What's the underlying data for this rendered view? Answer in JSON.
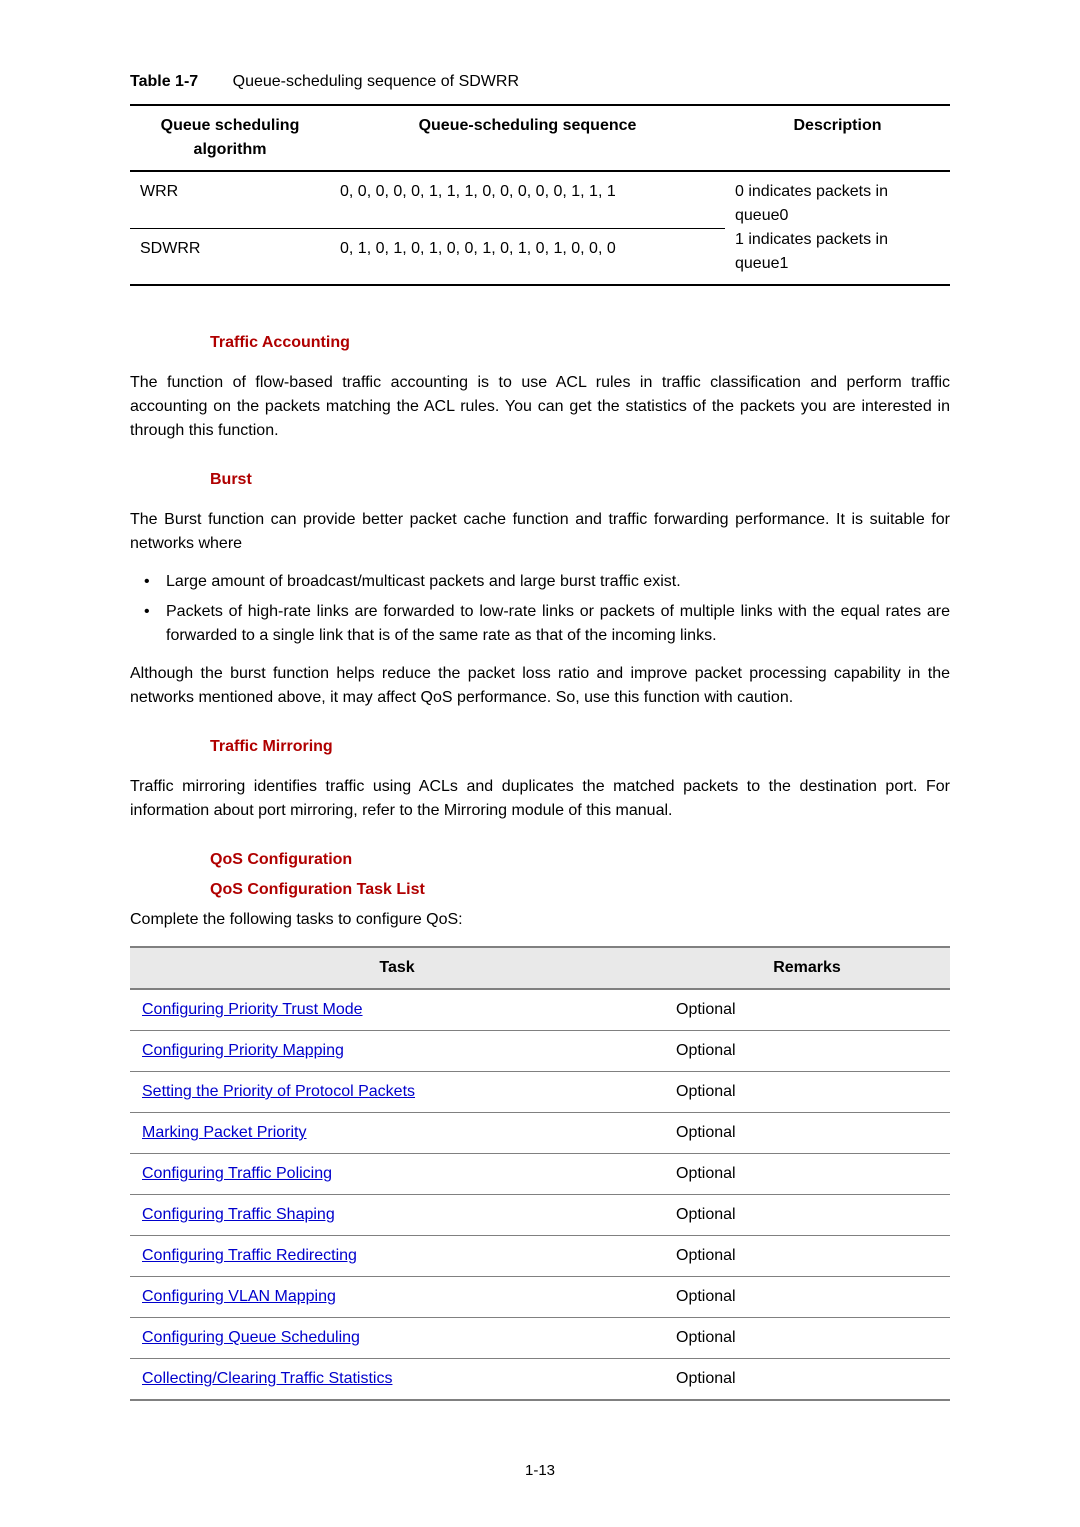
{
  "table1": {
    "caption_num": "Table 1-7",
    "caption_text": "Queue-scheduling sequence of SDWRR",
    "headers": {
      "c1": "Queue scheduling algorithm",
      "c2": "Queue-scheduling sequence",
      "c3": "Description"
    },
    "rows": [
      {
        "alg": "WRR",
        "seq": "0, 0, 0, 0, 0, 1, 1, 1, 0, 0, 0, 0, 0, 1, 1, 1"
      },
      {
        "alg": "SDWRR",
        "seq": "0, 1, 0, 1, 0, 1, 0, 0, 1, 0, 1, 0, 1, 0, 0, 0"
      }
    ],
    "desc_line1": "0 indicates packets in queue0",
    "desc_line2": "1 indicates packets in queue1"
  },
  "sections": {
    "traffic_accounting": {
      "marker": "Traffic Accounting",
      "p1": "The function of flow-based traffic accounting is to use ACL rules in traffic classification and perform traffic accounting on the packets matching the ACL rules. You can get the statistics of the packets you are interested in through this function."
    },
    "burst": {
      "marker": "Burst",
      "p1": "The Burst function can provide better packet cache function and traffic forwarding performance. It is suitable for networks where",
      "b1": "Large amount of broadcast/multicast packets and large burst traffic exist.",
      "b2": "Packets of high-rate links are forwarded to low-rate links or packets of multiple links with the equal rates are forwarded to a single link that is of the same rate as that of the incoming links.",
      "p2": "Although the burst function helps reduce the packet loss ratio and improve packet processing capability in the networks mentioned above, it may affect QoS performance. So, use this function with caution."
    },
    "traffic_mirroring": {
      "marker": "Traffic Mirroring",
      "p1": "Traffic mirroring identifies traffic using ACLs and duplicates the matched packets to the destination port. For information about port mirroring, refer to the Mirroring module of this manual."
    },
    "qos_config": {
      "marker1": "QoS Configuration",
      "marker2": "QoS Configuration Task List",
      "intro": "Complete the following tasks to configure QoS:"
    }
  },
  "task_table": {
    "headers": {
      "task": "Task",
      "remarks": "Remarks"
    },
    "rows": [
      {
        "task": "Configuring Priority Trust Mode",
        "remark": "Optional"
      },
      {
        "task": "Configuring Priority Mapping",
        "remark": "Optional"
      },
      {
        "task": "Setting the Priority of Protocol Packets",
        "remark": "Optional"
      },
      {
        "task": "Marking Packet Priority",
        "remark": "Optional"
      },
      {
        "task": "Configuring Traffic Policing",
        "remark": "Optional"
      },
      {
        "task": "Configuring Traffic Shaping",
        "remark": "Optional"
      },
      {
        "task": "Configuring Traffic Redirecting",
        "remark": "Optional"
      },
      {
        "task": "Configuring VLAN Mapping",
        "remark": "Optional"
      },
      {
        "task": "Configuring Queue Scheduling",
        "remark": "Optional"
      },
      {
        "task": "Collecting/Clearing Traffic Statistics",
        "remark": "Optional"
      }
    ]
  },
  "page_number": "1-13",
  "colors": {
    "heading_red": "#b00000",
    "link_blue": "#0000cc",
    "grey_header_bg": "#e9e9e9",
    "grey_border": "#808080",
    "black": "#000000"
  }
}
